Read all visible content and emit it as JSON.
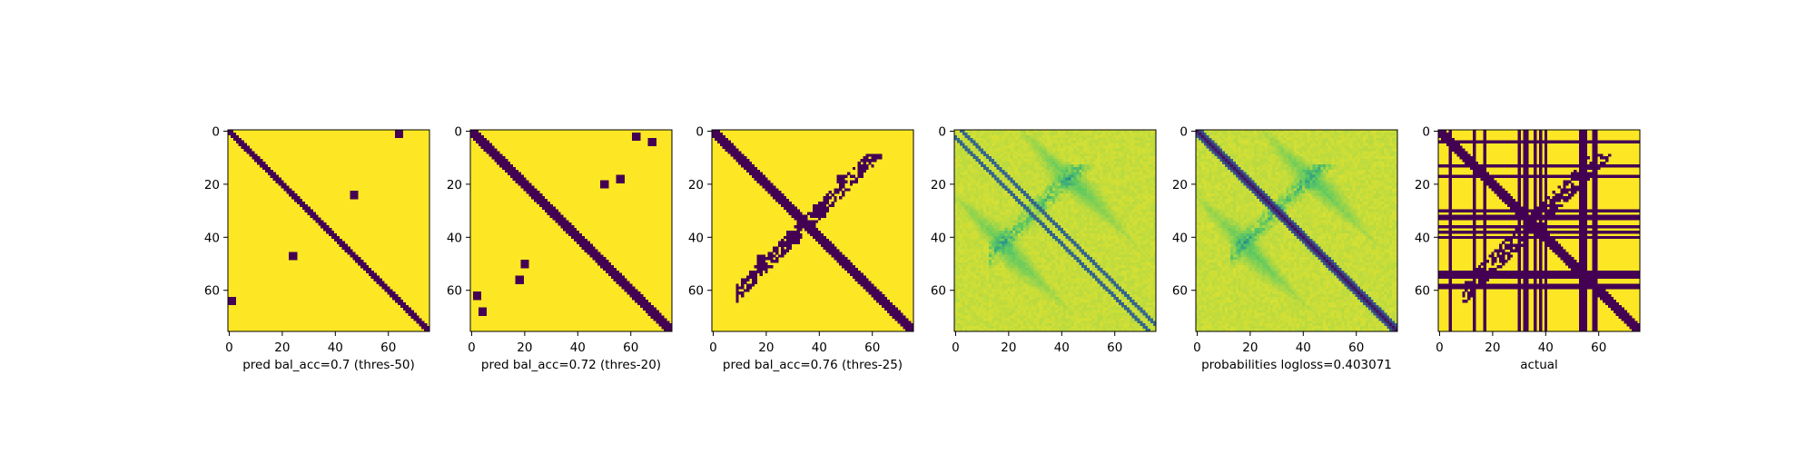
{
  "colors": {
    "dark": "#440154",
    "light": "#fde725",
    "viridis": [
      "#440154",
      "#3b528b",
      "#21918c",
      "#5ec962",
      "#fde725"
    ],
    "frame": "#000000"
  },
  "chart_data": [
    {
      "type": "heatmap",
      "title": "",
      "xlabel": "pred bal_acc=0.7 (thres-50)",
      "ylabel": "",
      "n": 76,
      "xticks": [
        0,
        20,
        40,
        60
      ],
      "yticks": [
        0,
        20,
        40,
        60
      ],
      "xlim": [
        0,
        76
      ],
      "ylim": [
        76,
        0
      ],
      "colormap": "viridis-binary",
      "features": {
        "diagonal_halfwidth": 1.8,
        "blobs": [
          [
            1,
            64,
            1.2
          ],
          [
            64,
            1,
            1.2
          ],
          [
            24,
            47,
            0.8
          ],
          [
            47,
            24,
            0.8
          ]
        ]
      }
    },
    {
      "type": "heatmap",
      "title": "",
      "xlabel": "pred bal_acc=0.72 (thres-20)",
      "ylabel": "",
      "n": 76,
      "xticks": [
        0,
        20,
        40,
        60
      ],
      "yticks": [
        0,
        20,
        40,
        60
      ],
      "xlim": [
        0,
        76
      ],
      "ylim": [
        76,
        0
      ],
      "colormap": "viridis-binary",
      "features": {
        "diagonal_halfwidth": 2.2,
        "blobs": [
          [
            2,
            62,
            1.5
          ],
          [
            62,
            2,
            1.5
          ],
          [
            20,
            50,
            1.2
          ],
          [
            50,
            20,
            1.2
          ],
          [
            4,
            68,
            0.8
          ],
          [
            68,
            4,
            0.8
          ],
          [
            18,
            56,
            0.8
          ],
          [
            56,
            18,
            0.8
          ]
        ]
      }
    },
    {
      "type": "heatmap",
      "title": "",
      "xlabel": "pred bal_acc=0.76 (thres-25)",
      "ylabel": "",
      "n": 76,
      "xticks": [
        0,
        20,
        40,
        60
      ],
      "yticks": [
        0,
        20,
        40,
        60
      ],
      "xlim": [
        0,
        76
      ],
      "ylim": [
        76,
        0
      ],
      "colormap": "viridis-binary",
      "features": {
        "diagonal_halfwidth": 2.6,
        "antidiagonal_halfwidth": 1.8,
        "blobs": [
          [
            30,
            40,
            2.0
          ],
          [
            40,
            30,
            2.0
          ],
          [
            18,
            48,
            1.5
          ],
          [
            48,
            18,
            1.5
          ]
        ]
      }
    },
    {
      "type": "heatmap",
      "title": "",
      "xlabel": "",
      "ylabel": "",
      "n": 76,
      "xticks": [
        0,
        20,
        40,
        60
      ],
      "yticks": [
        0,
        20,
        40,
        60
      ],
      "xlim": [
        0,
        76
      ],
      "ylim": [
        76,
        0
      ],
      "colormap": "viridis-continuous",
      "features": {
        "offset_diagonals": [
          2.5,
          -2.5
        ],
        "antidiagonal_halfwidth": 2.5
      }
    },
    {
      "type": "heatmap",
      "title": "",
      "xlabel": "probabilities logloss=0.403071",
      "ylabel": "",
      "n": 76,
      "xticks": [
        0,
        20,
        40,
        60
      ],
      "yticks": [
        0,
        20,
        40,
        60
      ],
      "xlim": [
        0,
        76
      ],
      "ylim": [
        76,
        0
      ],
      "colormap": "viridis-continuous",
      "features": {
        "diagonal_halfwidth": 2.5,
        "antidiagonal_halfwidth": 2.5
      }
    },
    {
      "type": "heatmap",
      "title": "",
      "xlabel": "actual",
      "ylabel": "",
      "n": 76,
      "xticks": [
        0,
        20,
        40,
        60
      ],
      "yticks": [
        0,
        20,
        40,
        60
      ],
      "xlim": [
        0,
        76
      ],
      "ylim": [
        76,
        0
      ],
      "colormap": "viridis-binary",
      "features": {
        "diagonal_halfwidth": 2.0,
        "antidiagonal_halfwidth": 2.0,
        "lines": [
          4,
          13,
          17,
          30,
          32,
          33,
          36,
          38,
          40,
          53,
          54,
          55,
          58,
          59
        ]
      }
    }
  ]
}
